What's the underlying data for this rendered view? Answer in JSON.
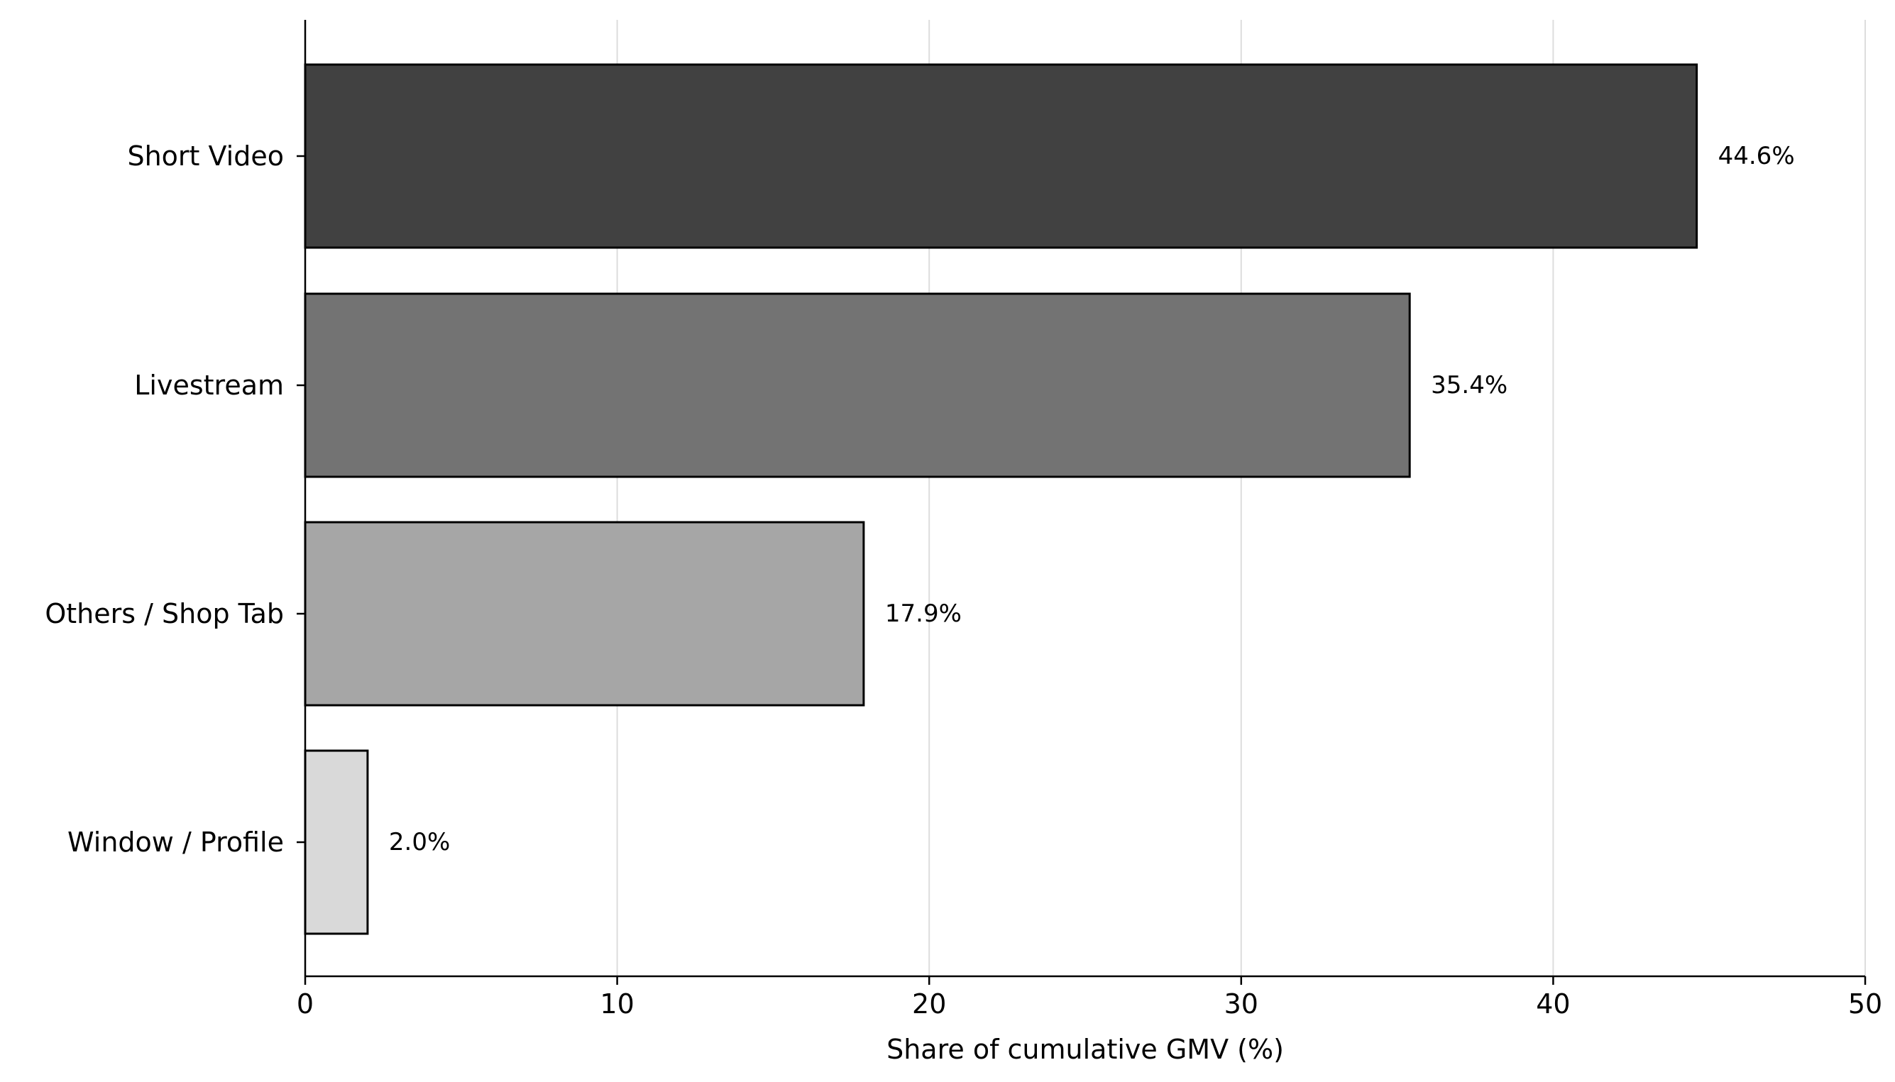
{
  "chart_data": {
    "type": "bar",
    "orientation": "horizontal",
    "title": "",
    "xlabel": "Share of cumulative GMV (%)",
    "ylabel": "",
    "categories": [
      "Short Video",
      "Livestream",
      "Others / Shop Tab",
      "Window / Profile"
    ],
    "values": [
      44.6,
      35.4,
      17.9,
      2.0
    ],
    "value_labels": [
      "44.6%",
      "35.4%",
      "17.9%",
      "2.0%"
    ],
    "colors": [
      "#414141",
      "#737373",
      "#a6a6a6",
      "#d9d9d9"
    ],
    "edge_color": "#000000",
    "xlim": [
      0,
      50
    ],
    "xticks": [
      0,
      10,
      20,
      30,
      40,
      50
    ],
    "xtick_labels": [
      "0",
      "10",
      "20",
      "30",
      "40",
      "50"
    ],
    "grid": "vertical",
    "grid_color": "#dddddd",
    "legend": "none"
  }
}
